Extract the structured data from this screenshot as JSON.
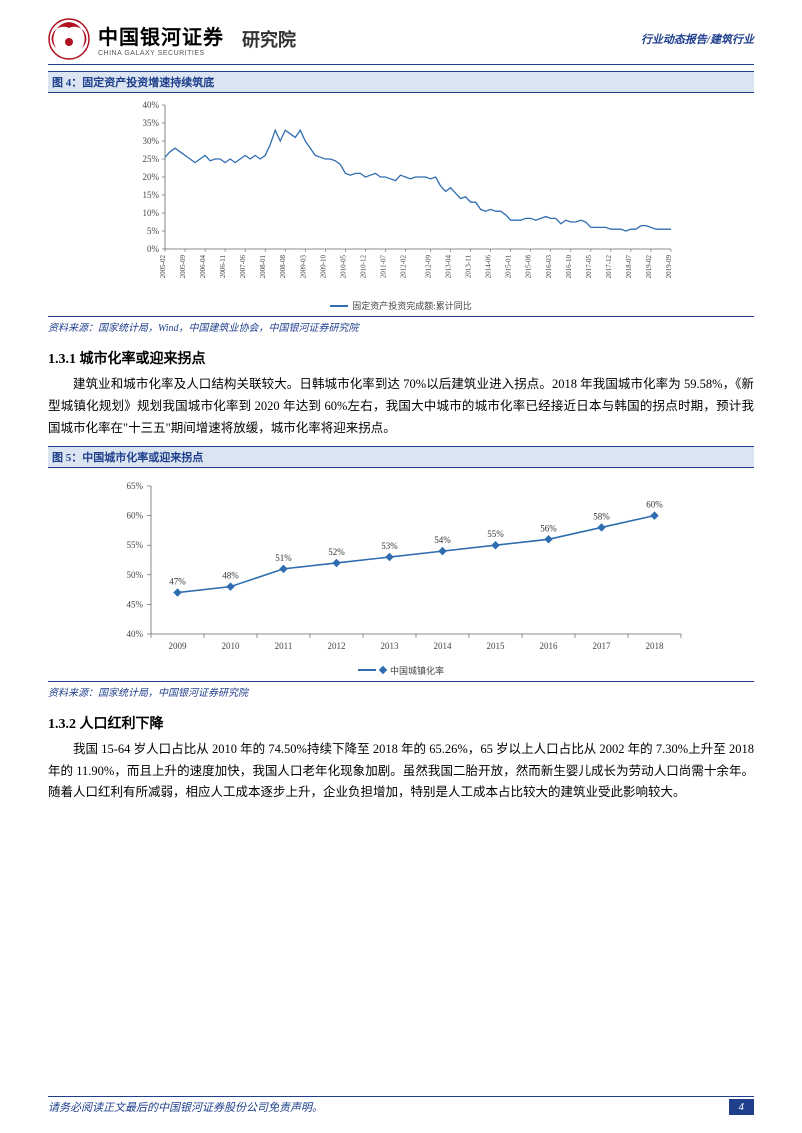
{
  "header": {
    "logo_cn": "中国银河证券",
    "logo_en": "CHINA GALAXY SECURITIES",
    "dept": "研究院",
    "right": "行业动态报告/建筑行业"
  },
  "fig4": {
    "title": "图 4：固定资产投资增速持续筑底",
    "source": "资料来源：国家统计局，Wind，中国建筑业协会，中国银河证券研究院",
    "type": "line",
    "legend": "固定资产投资完成额:累计同比",
    "ylim": [
      0,
      40
    ],
    "ytick_step": 5,
    "yticks": [
      "0%",
      "5%",
      "10%",
      "15%",
      "20%",
      "25%",
      "30%",
      "35%",
      "40%"
    ],
    "line_color": "#2f6db0",
    "axis_color": "#666666",
    "grid_color": "#ffffff",
    "background_color": "#ffffff",
    "label_fontsize": 7,
    "x_labels": [
      "2005-02",
      "2005-09",
      "2006-04",
      "2006-11",
      "2007-06",
      "2008-01",
      "2008-08",
      "2009-03",
      "2009-10",
      "2010-05",
      "2010-12",
      "2011-07",
      "2012-02",
      "2012-09",
      "2013-04",
      "2013-11",
      "2014-06",
      "2015-01",
      "2015-08",
      "2016-03",
      "2016-10",
      "2017-05",
      "2017-12",
      "2018-07",
      "2019-02",
      "2019-09"
    ],
    "values": [
      25.5,
      27,
      28,
      27,
      26,
      25,
      24,
      25,
      26,
      24.5,
      25,
      25,
      24,
      25,
      24,
      25,
      26,
      25,
      26,
      25,
      26,
      29,
      33,
      30,
      33,
      32,
      31,
      33,
      30,
      28,
      26,
      25.5,
      25,
      25,
      24.5,
      23.5,
      21,
      20.5,
      21,
      21,
      20,
      20.5,
      21,
      20,
      20,
      19.5,
      19,
      20.5,
      20,
      19.5,
      20,
      20,
      20,
      19.5,
      20,
      17.5,
      16,
      17,
      15.5,
      14,
      14.5,
      13,
      13,
      11,
      10.5,
      11,
      10.5,
      10.5,
      9.5,
      8,
      8,
      8,
      8.5,
      8.5,
      8,
      8.5,
      9,
      8.5,
      8.5,
      7,
      8,
      7.5,
      7.5,
      8,
      7.5,
      6,
      6,
      6,
      6,
      5.5,
      5.5,
      5.5,
      5,
      5.5,
      5.5,
      6.5,
      6.5,
      6,
      5.5,
      5.5,
      5.5,
      5.5
    ]
  },
  "section131": {
    "title": "1.3.1 城市化率或迎来拐点",
    "para": "建筑业和城市化率及人口结构关联较大。日韩城市化率到达 70%以后建筑业进入拐点。2018 年我国城市化率为 59.58%，《新型城镇化规划》规划我国城市化率到 2020 年达到 60%左右，我国大中城市的城市化率已经接近日本与韩国的拐点时期，预计我国城市化率在\"十三五\"期间增速将放缓，城市化率将迎来拐点。"
  },
  "fig5": {
    "title": "图 5：中国城市化率或迎来拐点",
    "source": "资料来源：国家统计局，中国银河证券研究院",
    "type": "line",
    "legend": "中国城镇化率",
    "ylim": [
      40,
      65
    ],
    "ytick_step": 5,
    "yticks": [
      "40%",
      "45%",
      "50%",
      "55%",
      "60%",
      "65%"
    ],
    "line_color": "#2f6db0",
    "marker": "diamond",
    "marker_color": "#2f6db0",
    "background_color": "#ffffff",
    "label_fontsize": 9,
    "x_labels": [
      "2009",
      "2010",
      "2011",
      "2012",
      "2013",
      "2014",
      "2015",
      "2016",
      "2017",
      "2018"
    ],
    "values": [
      47,
      48,
      51,
      52,
      53,
      54,
      55,
      56,
      58,
      60
    ],
    "point_labels": [
      "47%",
      "48%",
      "51%",
      "52%",
      "53%",
      "54%",
      "55%",
      "56%",
      "58%",
      "60%"
    ]
  },
  "section132": {
    "title": "1.3.2 人口红利下降",
    "para": "我国 15-64 岁人口占比从 2010 年的 74.50%持续下降至 2018 年的 65.26%，65 岁以上人口占比从 2002 年的 7.30%上升至 2018 年的 11.90%，而且上升的速度加快，我国人口老年化现象加剧。虽然我国二胎开放，然而新生婴儿成长为劳动人口尚需十余年。随着人口红利有所减弱，相应人工成本逐步上升，企业负担增加，特别是人工成本占比较大的建筑业受此影响较大。"
  },
  "footer": {
    "text": "请务必阅读正文最后的中国银河证券股份公司免责声明。",
    "page": "4"
  }
}
